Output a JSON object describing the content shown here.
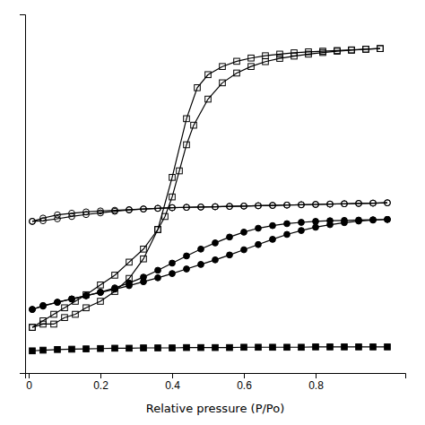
{
  "chart_data": {
    "type": "line",
    "xlabel": "Relative pressure (P/Po)",
    "xlim": [
      -0.01,
      1.05
    ],
    "ylim": [
      -0.02,
      1.08
    ],
    "xticks": [
      0,
      0.2,
      0.4,
      0.6,
      0.8
    ],
    "tick_labels": "x",
    "grid": false,
    "series": [
      {
        "marker": "open-square",
        "color": "#000000",
        "x": [
          0.01,
          0.04,
          0.07,
          0.1,
          0.13,
          0.16,
          0.2,
          0.24,
          0.28,
          0.32,
          0.36,
          0.38,
          0.4,
          0.42,
          0.44,
          0.46,
          0.5,
          0.54,
          0.58,
          0.62,
          0.66,
          0.7,
          0.74,
          0.78,
          0.82,
          0.86,
          0.9,
          0.94,
          0.98
        ],
        "values": [
          0.12,
          0.14,
          0.16,
          0.18,
          0.2,
          0.22,
          0.25,
          0.28,
          0.32,
          0.36,
          0.42,
          0.46,
          0.52,
          0.6,
          0.68,
          0.74,
          0.82,
          0.87,
          0.9,
          0.92,
          0.935,
          0.945,
          0.952,
          0.958,
          0.963,
          0.967,
          0.97,
          0.973,
          0.975
        ]
      },
      {
        "marker": "open-square",
        "color": "#000000",
        "x": [
          0.98,
          0.94,
          0.9,
          0.86,
          0.82,
          0.78,
          0.74,
          0.7,
          0.66,
          0.62,
          0.58,
          0.54,
          0.5,
          0.47,
          0.44,
          0.4,
          0.36,
          0.32,
          0.28,
          0.24,
          0.2,
          0.16,
          0.13,
          0.1,
          0.07,
          0.04,
          0.01
        ],
        "values": [
          0.975,
          0.973,
          0.971,
          0.969,
          0.967,
          0.965,
          0.962,
          0.958,
          0.953,
          0.946,
          0.936,
          0.92,
          0.895,
          0.855,
          0.76,
          0.58,
          0.42,
          0.33,
          0.27,
          0.23,
          0.2,
          0.18,
          0.16,
          0.15,
          0.13,
          0.13,
          0.12
        ]
      },
      {
        "marker": "open-circle",
        "color": "#000000",
        "x": [
          0.01,
          0.04,
          0.08,
          0.12,
          0.16,
          0.2,
          0.24,
          0.28,
          0.32,
          0.36,
          0.4,
          0.44,
          0.48,
          0.52,
          0.56,
          0.6,
          0.64,
          0.68,
          0.72,
          0.76,
          0.8,
          0.84,
          0.88,
          0.92,
          0.96,
          1.0
        ],
        "values": [
          0.445,
          0.455,
          0.465,
          0.47,
          0.474,
          0.477,
          0.479,
          0.481,
          0.483,
          0.485,
          0.487,
          0.488,
          0.489,
          0.49,
          0.491,
          0.492,
          0.493,
          0.494,
          0.495,
          0.496,
          0.497,
          0.498,
          0.499,
          0.5,
          0.501,
          0.502
        ]
      },
      {
        "marker": "open-circle",
        "color": "#000000",
        "x": [
          1.0,
          0.96,
          0.92,
          0.88,
          0.84,
          0.8,
          0.76,
          0.72,
          0.68,
          0.64,
          0.6,
          0.56,
          0.52,
          0.48,
          0.44,
          0.4,
          0.36,
          0.32,
          0.28,
          0.24,
          0.2,
          0.16,
          0.12,
          0.08,
          0.04,
          0.01
        ],
        "values": [
          0.502,
          0.501,
          0.5,
          0.499,
          0.498,
          0.497,
          0.496,
          0.495,
          0.494,
          0.493,
          0.492,
          0.491,
          0.49,
          0.489,
          0.488,
          0.487,
          0.485,
          0.483,
          0.48,
          0.476,
          0.471,
          0.466,
          0.46,
          0.453,
          0.447,
          0.445
        ]
      },
      {
        "marker": "circle",
        "color": "#000000",
        "x": [
          0.01,
          0.04,
          0.08,
          0.12,
          0.16,
          0.2,
          0.24,
          0.28,
          0.32,
          0.36,
          0.4,
          0.44,
          0.48,
          0.52,
          0.56,
          0.6,
          0.64,
          0.68,
          0.72,
          0.76,
          0.8,
          0.84,
          0.88,
          0.92,
          0.96,
          1.0
        ],
        "values": [
          0.175,
          0.185,
          0.197,
          0.207,
          0.217,
          0.227,
          0.237,
          0.248,
          0.26,
          0.272,
          0.285,
          0.299,
          0.313,
          0.327,
          0.342,
          0.358,
          0.374,
          0.39,
          0.405,
          0.417,
          0.427,
          0.435,
          0.441,
          0.446,
          0.449,
          0.451
        ]
      },
      {
        "marker": "circle",
        "color": "#000000",
        "x": [
          1.0,
          0.96,
          0.92,
          0.88,
          0.84,
          0.8,
          0.76,
          0.72,
          0.68,
          0.64,
          0.6,
          0.56,
          0.52,
          0.48,
          0.44,
          0.4,
          0.36,
          0.32,
          0.28,
          0.24,
          0.2,
          0.16,
          0.12,
          0.08,
          0.04,
          0.01
        ],
        "values": [
          0.451,
          0.45,
          0.449,
          0.448,
          0.447,
          0.445,
          0.442,
          0.438,
          0.432,
          0.424,
          0.412,
          0.397,
          0.379,
          0.36,
          0.339,
          0.317,
          0.295,
          0.274,
          0.256,
          0.241,
          0.228,
          0.217,
          0.207,
          0.197,
          0.187,
          0.175
        ]
      },
      {
        "marker": "square",
        "color": "#000000",
        "x": [
          0.01,
          0.04,
          0.08,
          0.12,
          0.16,
          0.2,
          0.24,
          0.28,
          0.32,
          0.36,
          0.4,
          0.44,
          0.48,
          0.52,
          0.56,
          0.6,
          0.64,
          0.68,
          0.72,
          0.76,
          0.8,
          0.84,
          0.88,
          0.92,
          0.96,
          1.0
        ],
        "values": [
          0.048,
          0.05,
          0.052,
          0.053,
          0.054,
          0.055,
          0.056,
          0.056,
          0.057,
          0.057,
          0.057,
          0.058,
          0.058,
          0.058,
          0.058,
          0.059,
          0.059,
          0.059,
          0.059,
          0.059,
          0.06,
          0.06,
          0.06,
          0.06,
          0.06,
          0.06
        ]
      }
    ]
  }
}
